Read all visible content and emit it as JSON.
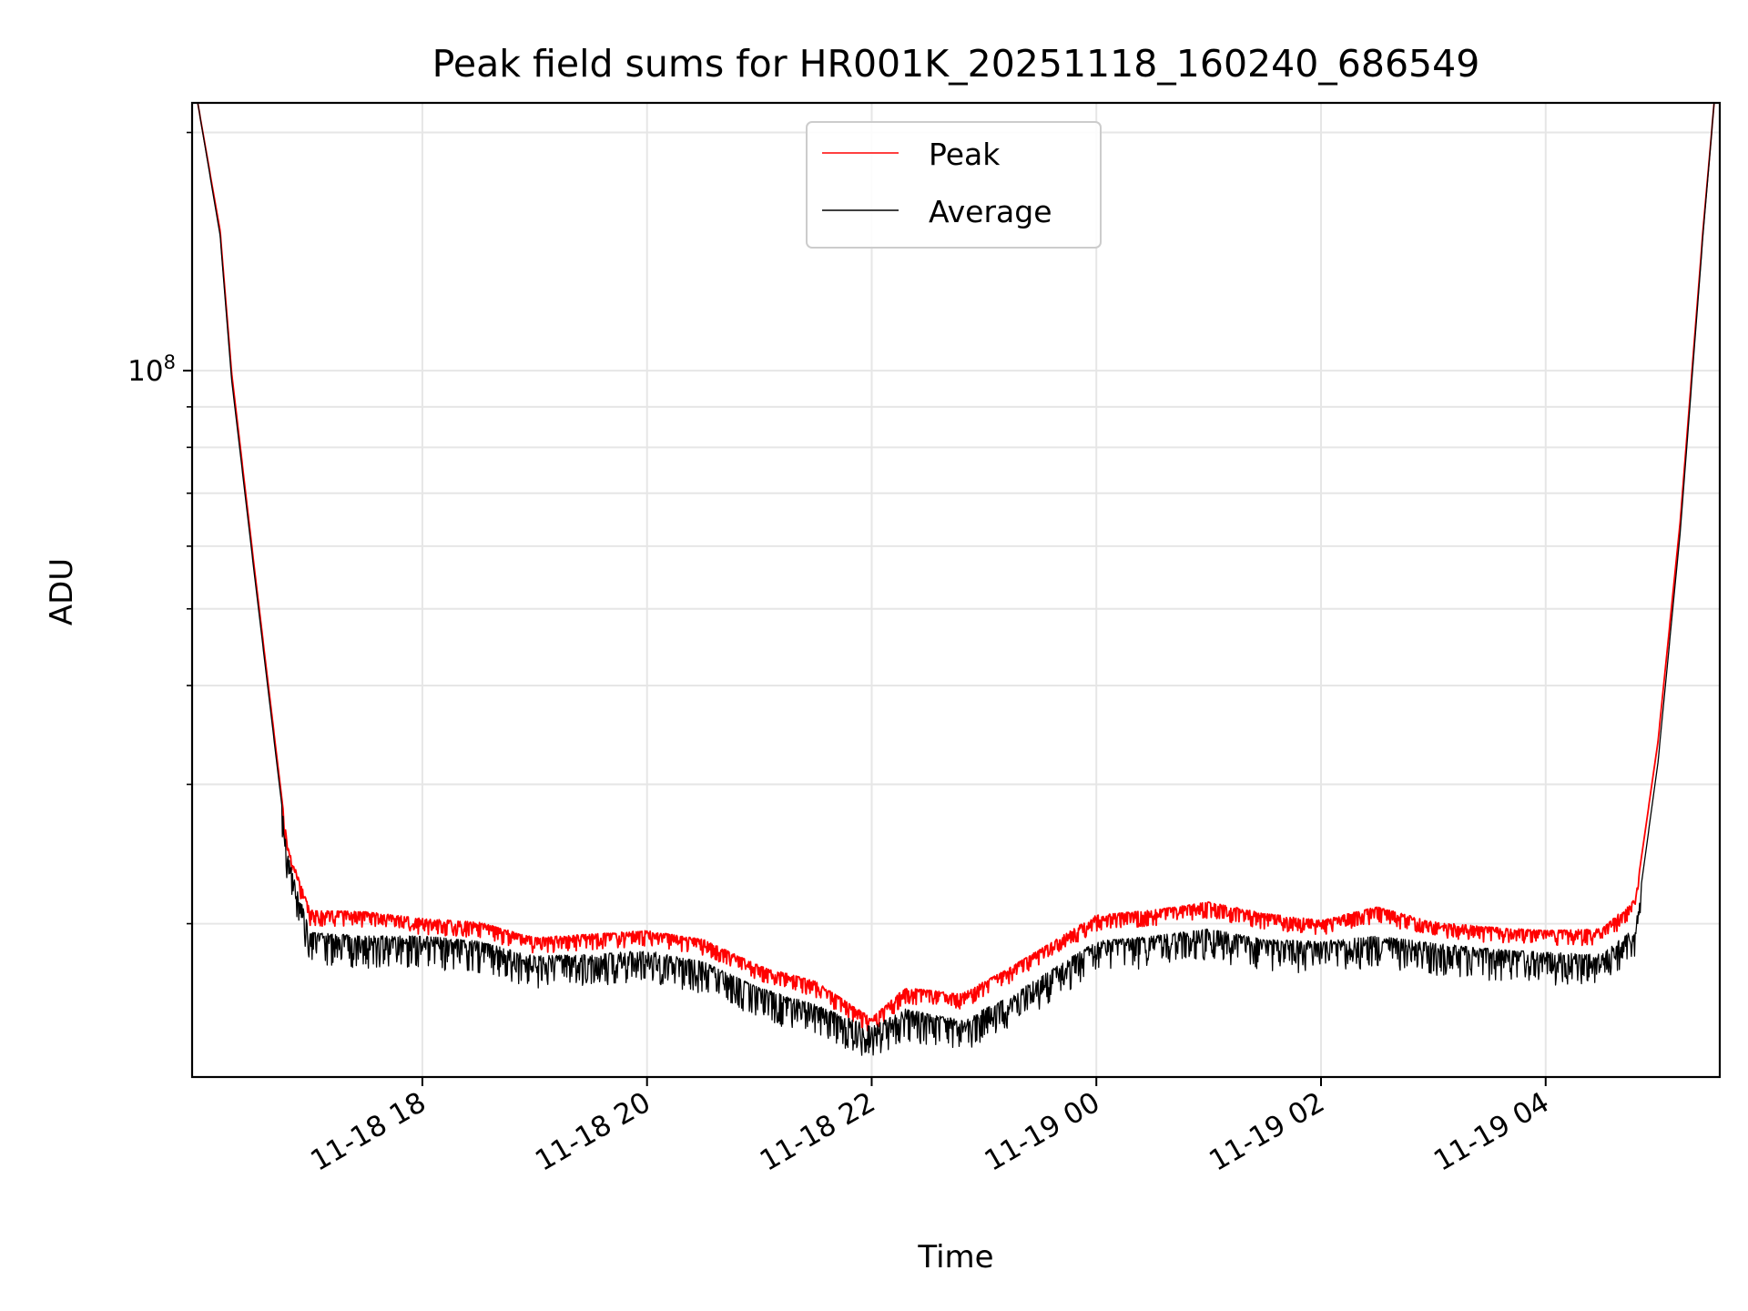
{
  "chart_data": {
    "type": "line",
    "title": "Peak field sums for HR001K_20251118_160240_686549",
    "xlabel": "Time",
    "ylabel": "ADU",
    "yscale": "log",
    "ylim": [
      12800000,
      218000000
    ],
    "xlim_hours": [
      15.95,
      29.55
    ],
    "x_tick_hours": [
      18,
      20,
      22,
      24,
      26,
      28
    ],
    "x_tick_labels": [
      "11-18 18",
      "11-18 20",
      "11-18 22",
      "11-19 00",
      "11-19 02",
      "11-19 04"
    ],
    "y_major_ticks": [
      100000000
    ],
    "y_major_tick_labels": [
      "10^8"
    ],
    "y_minor_ticks": [
      20000000,
      30000000,
      40000000,
      50000000,
      60000000,
      70000000,
      80000000,
      90000000,
      200000000
    ],
    "grid": true,
    "legend_position": "top-center",
    "series": [
      {
        "name": "Peak",
        "color": "#ff0000",
        "x_hours": [
          16.0,
          16.2,
          16.3,
          16.5,
          16.8,
          17.0,
          17.5,
          18.0,
          18.5,
          19.0,
          19.5,
          20.0,
          20.5,
          21.0,
          21.5,
          22.0,
          22.3,
          22.8,
          23.2,
          24.0,
          24.5,
          25.0,
          25.5,
          26.0,
          26.5,
          27.0,
          27.5,
          28.0,
          28.5,
          28.8,
          29.0,
          29.2,
          29.4,
          29.5
        ],
        "values": [
          218000000,
          150000000,
          100000000,
          57000000,
          25000000,
          20800000,
          20700000,
          20300000,
          20100000,
          19200000,
          19400000,
          19600000,
          19100000,
          17700000,
          16900000,
          15200000,
          16600000,
          16300000,
          17500000,
          20500000,
          20800000,
          21300000,
          20600000,
          20200000,
          21000000,
          20100000,
          19800000,
          19600000,
          19700000,
          21500000,
          34000000,
          65000000,
          150000000,
          218000000
        ]
      },
      {
        "name": "Average",
        "color": "#000000",
        "x_hours": [
          16.0,
          16.2,
          16.3,
          16.5,
          16.8,
          17.0,
          17.5,
          18.0,
          18.5,
          19.0,
          19.5,
          20.0,
          20.5,
          21.0,
          21.5,
          22.0,
          22.3,
          22.8,
          23.2,
          24.0,
          24.5,
          25.0,
          25.5,
          26.0,
          26.5,
          27.0,
          27.5,
          28.0,
          28.5,
          28.8,
          29.0,
          29.2,
          29.4,
          29.5
        ],
        "values": [
          218000000,
          148000000,
          98000000,
          56000000,
          24500000,
          19500000,
          19300000,
          19300000,
          19000000,
          18200000,
          18300000,
          18500000,
          17900000,
          16600000,
          15800000,
          14800000,
          15600000,
          15100000,
          16100000,
          19000000,
          19300000,
          19700000,
          19100000,
          19000000,
          19300000,
          18900000,
          18600000,
          18400000,
          18300000,
          19800000,
          32000000,
          63000000,
          148000000,
          218000000
        ]
      }
    ]
  }
}
